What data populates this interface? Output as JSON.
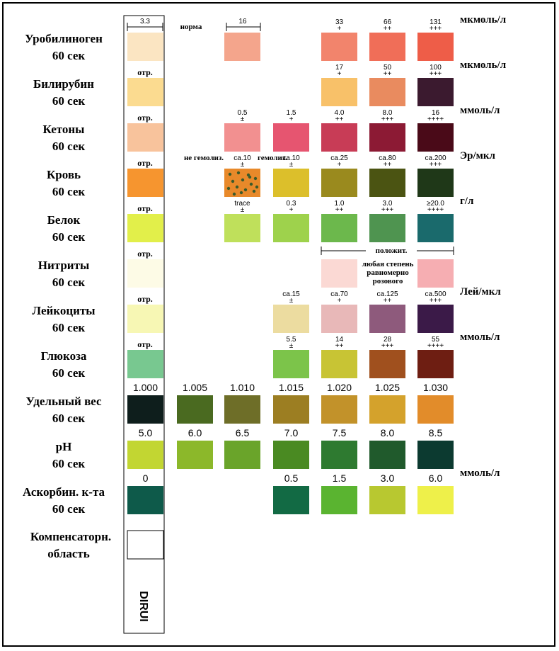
{
  "chart_data": {
    "type": "table",
    "title": "",
    "brand": "DIRUI",
    "strip_width_label": "3.3",
    "norma_label": "норма",
    "norma_width_label": "16",
    "compensation": {
      "name": "Компенсаторн.",
      "time": "область"
    },
    "rows": [
      {
        "name": "Уробилиноген",
        "time": "60 сек",
        "unit": "мкмоль/л",
        "negative_label": "",
        "swatches": [
          {
            "col": 0,
            "color": "#fbe5c2",
            "value": "",
            "sign": ""
          },
          {
            "col": 2,
            "color": "#f4a58c",
            "value": "",
            "sign": ""
          },
          {
            "col": 4,
            "color": "#f2846c",
            "value": "33",
            "sign": "+"
          },
          {
            "col": 5,
            "color": "#f06e58",
            "value": "66",
            "sign": "++"
          },
          {
            "col": 6,
            "color": "#ee5d48",
            "value": "131",
            "sign": "+++"
          }
        ]
      },
      {
        "name": "Билирубин",
        "time": "60 сек",
        "unit": "мкмоль/л",
        "negative_label": "отр.",
        "swatches": [
          {
            "col": 0,
            "color": "#fbdb90",
            "value": "",
            "sign": ""
          },
          {
            "col": 4,
            "color": "#f8c169",
            "value": "17",
            "sign": "+"
          },
          {
            "col": 5,
            "color": "#e98b5f",
            "value": "50",
            "sign": "++"
          },
          {
            "col": 6,
            "color": "#3b1a2f",
            "value": "100",
            "sign": "+++"
          }
        ]
      },
      {
        "name": "Кетоны",
        "time": "60 сек",
        "unit": "ммоль/л",
        "negative_label": "отр.",
        "swatches": [
          {
            "col": 0,
            "color": "#f8c39c",
            "value": "",
            "sign": ""
          },
          {
            "col": 2,
            "color": "#f29090",
            "value": "0.5",
            "sign": "±"
          },
          {
            "col": 3,
            "color": "#e65570",
            "value": "1.5",
            "sign": "+"
          },
          {
            "col": 4,
            "color": "#c83c56",
            "value": "4.0",
            "sign": "++"
          },
          {
            "col": 5,
            "color": "#8c1a34",
            "value": "8.0",
            "sign": "+++"
          },
          {
            "col": 6,
            "color": "#4a0a18",
            "value": "16",
            "sign": "++++"
          }
        ]
      },
      {
        "name": "Кровь",
        "time": "60 сек",
        "unit": "Эр/мкл",
        "negative_label": "отр.",
        "hemo_labels": [
          "не гемолиз.",
          "гемолиз."
        ],
        "swatches": [
          {
            "col": 0,
            "color": "#f6952f",
            "value": "",
            "sign": ""
          },
          {
            "col": 2,
            "color": "#e8892a",
            "value": "ca.10",
            "sign": "±",
            "dotted": true
          },
          {
            "col": 3,
            "color": "#dcbf2b",
            "value": "ca.10",
            "sign": "±"
          },
          {
            "col": 4,
            "color": "#9a8a1e",
            "value": "ca.25",
            "sign": "+"
          },
          {
            "col": 5,
            "color": "#4b5412",
            "value": "ca.80",
            "sign": "++"
          },
          {
            "col": 6,
            "color": "#1f3818",
            "value": "ca.200",
            "sign": "+++"
          }
        ]
      },
      {
        "name": "Белок",
        "time": "60 сек",
        "unit": "г/л",
        "negative_label": "отр.",
        "swatches": [
          {
            "col": 0,
            "color": "#e2ef4a",
            "value": "",
            "sign": ""
          },
          {
            "col": 2,
            "color": "#bfe05b",
            "value": "trace",
            "sign": "±"
          },
          {
            "col": 3,
            "color": "#9ed24c",
            "value": "0.3",
            "sign": "+"
          },
          {
            "col": 4,
            "color": "#6cb84c",
            "value": "1.0",
            "sign": "++"
          },
          {
            "col": 5,
            "color": "#4f9450",
            "value": "3.0",
            "sign": "+++"
          },
          {
            "col": 6,
            "color": "#1a6a6c",
            "value": "≥20.0",
            "sign": "++++"
          }
        ]
      },
      {
        "name": "Нитриты",
        "time": "60 сек",
        "unit": "",
        "negative_label": "отр.",
        "positive_label": "положит.",
        "positive_note": [
          "любая степень",
          "равномерно",
          "розового"
        ],
        "swatches": [
          {
            "col": 0,
            "color": "#fdfbe6",
            "value": "",
            "sign": ""
          },
          {
            "col": 4,
            "color": "#fbd9d4",
            "value": "",
            "sign": ""
          },
          {
            "col": 6,
            "color": "#f6aeb2",
            "value": "",
            "sign": ""
          }
        ]
      },
      {
        "name": "Лейкоциты",
        "time": "60 сек",
        "unit": "Лей/мкл",
        "negative_label": "отр.",
        "swatches": [
          {
            "col": 0,
            "color": "#f7f7b4",
            "value": "",
            "sign": ""
          },
          {
            "col": 3,
            "color": "#ecdca0",
            "value": "ca.15",
            "sign": "±"
          },
          {
            "col": 4,
            "color": "#e8b8b8",
            "value": "ca.70",
            "sign": "+"
          },
          {
            "col": 5,
            "color": "#8e5a7c",
            "value": "ca.125",
            "sign": "++"
          },
          {
            "col": 6,
            "color": "#3b1a48",
            "value": "ca.500",
            "sign": "+++"
          }
        ]
      },
      {
        "name": "Глюкоза",
        "time": "60 сек",
        "unit": "ммоль/л",
        "negative_label": "отр.",
        "swatches": [
          {
            "col": 0,
            "color": "#78c890",
            "value": "",
            "sign": ""
          },
          {
            "col": 3,
            "color": "#7cc44a",
            "value": "5.5",
            "sign": "±"
          },
          {
            "col": 4,
            "color": "#c8c434",
            "value": "14",
            "sign": "++"
          },
          {
            "col": 5,
            "color": "#a0501e",
            "value": "28",
            "sign": "+++"
          },
          {
            "col": 6,
            "color": "#6e1e12",
            "value": "55",
            "sign": "++++"
          }
        ]
      },
      {
        "name": "Удельный вес",
        "time": "60 сек",
        "unit": "",
        "negative_label": "",
        "swatches": [
          {
            "col": 0,
            "color": "#0e1e1c",
            "value": "1.000",
            "sign": ""
          },
          {
            "col": 1,
            "color": "#4a6a20",
            "value": "1.005",
            "sign": ""
          },
          {
            "col": 2,
            "color": "#6e6e28",
            "value": "1.010",
            "sign": ""
          },
          {
            "col": 3,
            "color": "#9c7e22",
            "value": "1.015",
            "sign": ""
          },
          {
            "col": 4,
            "color": "#c2922a",
            "value": "1.020",
            "sign": ""
          },
          {
            "col": 5,
            "color": "#d4a22c",
            "value": "1.025",
            "sign": ""
          },
          {
            "col": 6,
            "color": "#e28c2a",
            "value": "1.030",
            "sign": ""
          }
        ]
      },
      {
        "name": "pH",
        "time": "60 сек",
        "unit": "",
        "negative_label": "",
        "swatches": [
          {
            "col": 0,
            "color": "#c2d632",
            "value": "5.0",
            "sign": ""
          },
          {
            "col": 1,
            "color": "#8cb82a",
            "value": "6.0",
            "sign": ""
          },
          {
            "col": 2,
            "color": "#6aa42a",
            "value": "6.5",
            "sign": ""
          },
          {
            "col": 3,
            "color": "#4a8a22",
            "value": "7.0",
            "sign": ""
          },
          {
            "col": 4,
            "color": "#2e7a30",
            "value": "7.5",
            "sign": ""
          },
          {
            "col": 5,
            "color": "#205a2c",
            "value": "8.0",
            "sign": ""
          },
          {
            "col": 6,
            "color": "#0c3a30",
            "value": "8.5",
            "sign": ""
          }
        ]
      },
      {
        "name": "Аскорбин. к-та",
        "time": "60 сек",
        "unit": "ммоль/л",
        "negative_label": "",
        "swatches": [
          {
            "col": 0,
            "color": "#0e5a4a",
            "value": "0",
            "sign": ""
          },
          {
            "col": 3,
            "color": "#126a44",
            "value": "0.5",
            "sign": ""
          },
          {
            "col": 4,
            "color": "#5ab430",
            "value": "1.5",
            "sign": ""
          },
          {
            "col": 5,
            "color": "#b8c830",
            "value": "3.0",
            "sign": ""
          },
          {
            "col": 6,
            "color": "#eef04a",
            "value": "6.0",
            "sign": ""
          }
        ]
      }
    ]
  }
}
